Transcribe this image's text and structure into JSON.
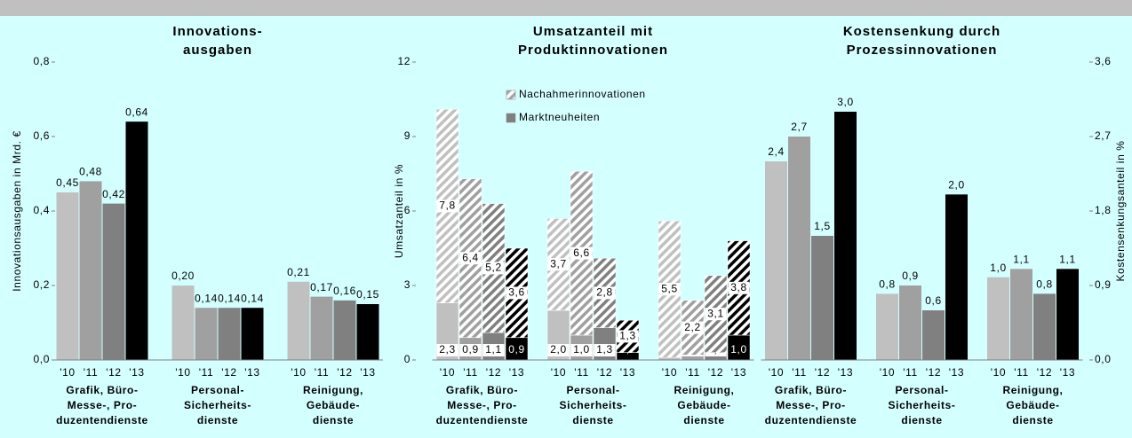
{
  "chart_data": [
    {
      "type": "bar",
      "title": [
        "Innovations-",
        "ausgaben"
      ],
      "y_label": "Innovationsausgaben in Mrd. €",
      "categories": [
        [
          "Grafik, Büro-",
          "Messe-, Pro-",
          "duzentendienste"
        ],
        [
          "Personal-",
          "Sicherheits-",
          "dienste"
        ],
        [
          "Reinigung,",
          "Gebäude-",
          "dienste"
        ]
      ],
      "series": [
        {
          "name": "'10",
          "color": "#c0c0c0",
          "values": [
            0.45,
            0.2,
            0.21
          ],
          "value_labels": [
            "0,45",
            "0,20",
            "0,21"
          ]
        },
        {
          "name": "'11",
          "color": "#a0a0a0",
          "values": [
            0.48,
            0.14,
            0.17
          ],
          "value_labels": [
            "0,48",
            "0,14",
            "0,17"
          ]
        },
        {
          "name": "'12",
          "color": "#808080",
          "values": [
            0.42,
            0.14,
            0.16
          ],
          "value_labels": [
            "0,42",
            "0,14",
            "0,16"
          ]
        },
        {
          "name": "'13",
          "color": "#000000",
          "values": [
            0.64,
            0.14,
            0.15
          ],
          "value_labels": [
            "0,64",
            "0,14",
            "0,15"
          ]
        }
      ],
      "ylim": [
        0,
        0.8
      ],
      "yticks": [
        {
          "value": 0,
          "label": "0,0"
        },
        {
          "value": 0.2,
          "label": "0,2"
        },
        {
          "value": 0.4,
          "label": "0,4"
        },
        {
          "value": 0.6,
          "label": "0,6"
        },
        {
          "value": 0.8,
          "label": "0,8"
        }
      ]
    },
    {
      "type": "stacked_bar",
      "title": [
        "Umsatzanteil mit",
        "Produktinnovationen"
      ],
      "y_label": "Umsatzanteil in %",
      "categories": [
        [
          "Grafik, Büro-",
          "Messe-, Pro-",
          "duzentendienste"
        ],
        [
          "Personal-",
          "Sicherheits-",
          "dienste"
        ],
        [
          "Reinigung,",
          "Gebäude-",
          "dienste"
        ]
      ],
      "years": [
        "'10",
        "'11",
        "'12",
        "'13"
      ],
      "year_colors": [
        "#c0c0c0",
        "#a0a0a0",
        "#808080",
        "#000000"
      ],
      "series": [
        {
          "name": "Marktneuheiten",
          "color": "#808080",
          "values": [
            [
              2.3,
              0.9,
              1.1,
              0.9
            ],
            [
              2.0,
              1.0,
              1.3,
              0.3
            ],
            [
              0.1,
              0.2,
              0.3,
              1.0
            ]
          ],
          "value_labels": [
            [
              "2,3",
              "0,9",
              "1,1",
              "0,9"
            ],
            [
              "2,0",
              "1,0",
              "1,3",
              "0,3"
            ],
            [
              "0,1",
              "0,2",
              "0,3",
              "1,0"
            ]
          ]
        },
        {
          "name": "Nachahmerinnovationen",
          "color": "#a6a6a6",
          "pattern": "hatched",
          "values": [
            [
              7.8,
              6.4,
              5.2,
              3.6
            ],
            [
              3.7,
              6.6,
              2.8,
              1.3
            ],
            [
              5.5,
              2.2,
              3.1,
              3.8
            ]
          ],
          "value_labels": [
            [
              "7,8",
              "6,4",
              "5,2",
              "3,6"
            ],
            [
              "3,7",
              "6,6",
              "2,8",
              "1,3"
            ],
            [
              "5,5",
              "2,2",
              "3,1",
              "3,8"
            ]
          ]
        }
      ],
      "ylim": [
        0,
        12
      ],
      "yticks": [
        0,
        3,
        6,
        9,
        12
      ]
    },
    {
      "type": "bar",
      "title": [
        "Kostensenkung durch",
        "Prozessinnovationen"
      ],
      "y_label": "Kostensenkungsanteil in %",
      "categories": [
        [
          "Grafik, Büro-",
          "Messe-, Pro-",
          "duzentendienste"
        ],
        [
          "Personal-",
          "Sicherheits-",
          "dienste"
        ],
        [
          "Reinigung,",
          "Gebäude-",
          "dienste"
        ]
      ],
      "series": [
        {
          "name": "'10",
          "color": "#c0c0c0",
          "axis": "y2",
          "values": [
            2.4,
            0.8,
            1.0
          ],
          "value_labels": [
            "2,4",
            "0,8",
            "1,0"
          ]
        },
        {
          "name": "'11",
          "color": "#a0a0a0",
          "axis": "y2",
          "values": [
            2.7,
            0.9,
            1.1
          ],
          "value_labels": [
            "2,7",
            "0,9",
            "1,1"
          ]
        },
        {
          "name": "'12",
          "color": "#808080",
          "axis": "y2",
          "values": [
            1.5,
            0.6,
            0.8
          ],
          "value_labels": [
            "1,5",
            "0,6",
            "0,8"
          ]
        },
        {
          "name": "'13",
          "color": "#000000",
          "axis": "y2",
          "values": [
            3.0,
            2.0,
            1.1
          ],
          "value_labels": [
            "3,0",
            "2,0",
            "1,1"
          ]
        }
      ],
      "y2lim": [
        0,
        3.6
      ],
      "y2ticks": [
        {
          "value": 0,
          "label": "0,0"
        },
        {
          "value": 0.9,
          "label": "0,9"
        },
        {
          "value": 1.8,
          "label": "1,8"
        },
        {
          "value": 2.7,
          "label": "2,7"
        },
        {
          "value": 3.6,
          "label": "3,6"
        }
      ]
    }
  ]
}
